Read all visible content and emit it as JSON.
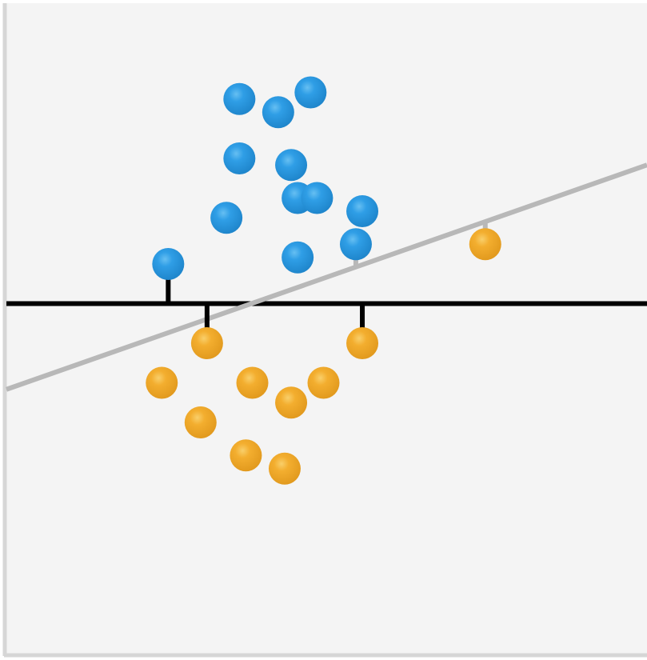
{
  "diagram": {
    "type": "svm-margin-illustration",
    "colors": {
      "background": "#f4f4f4",
      "frame": "#d6d6d6",
      "class_a": "#2e9be3",
      "class_b": "#f2ad2e",
      "boundary_good": "#000000",
      "boundary_poor": "#b8b8b8"
    },
    "classes": [
      {
        "name": "",
        "color_key": "class_a",
        "points": [
          {
            "x": 0.37,
            "y": 0.15,
            "support": false
          },
          {
            "x": 0.43,
            "y": 0.17,
            "support": false
          },
          {
            "x": 0.48,
            "y": 0.14,
            "support": false
          },
          {
            "x": 0.37,
            "y": 0.24,
            "support": false
          },
          {
            "x": 0.45,
            "y": 0.25,
            "support": false
          },
          {
            "x": 0.46,
            "y": 0.3,
            "support": false
          },
          {
            "x": 0.49,
            "y": 0.3,
            "support": false
          },
          {
            "x": 0.56,
            "y": 0.32,
            "support": false
          },
          {
            "x": 0.35,
            "y": 0.33,
            "support": false
          },
          {
            "x": 0.55,
            "y": 0.37,
            "support": false,
            "poor_support": true
          },
          {
            "x": 0.46,
            "y": 0.39,
            "support": false
          },
          {
            "x": 0.26,
            "y": 0.4,
            "support": true
          }
        ]
      },
      {
        "name": "",
        "color_key": "class_b",
        "points": [
          {
            "x": 0.32,
            "y": 0.52,
            "support": true,
            "poor_support": true
          },
          {
            "x": 0.56,
            "y": 0.52,
            "support": true
          },
          {
            "x": 0.75,
            "y": 0.37,
            "support": false,
            "poor_support": true
          },
          {
            "x": 0.25,
            "y": 0.58,
            "support": false
          },
          {
            "x": 0.39,
            "y": 0.58,
            "support": false
          },
          {
            "x": 0.5,
            "y": 0.58,
            "support": false
          },
          {
            "x": 0.45,
            "y": 0.61,
            "support": false
          },
          {
            "x": 0.31,
            "y": 0.64,
            "support": false
          },
          {
            "x": 0.38,
            "y": 0.69,
            "support": false
          },
          {
            "x": 0.44,
            "y": 0.71,
            "support": false
          }
        ]
      }
    ],
    "lines": [
      {
        "name": "",
        "style_key": "boundary_good",
        "y_at_left": 0.46,
        "y_at_right": 0.46
      },
      {
        "name": "",
        "style_key": "boundary_poor",
        "y_at_left": 0.59,
        "y_at_right": 0.25
      }
    ]
  }
}
